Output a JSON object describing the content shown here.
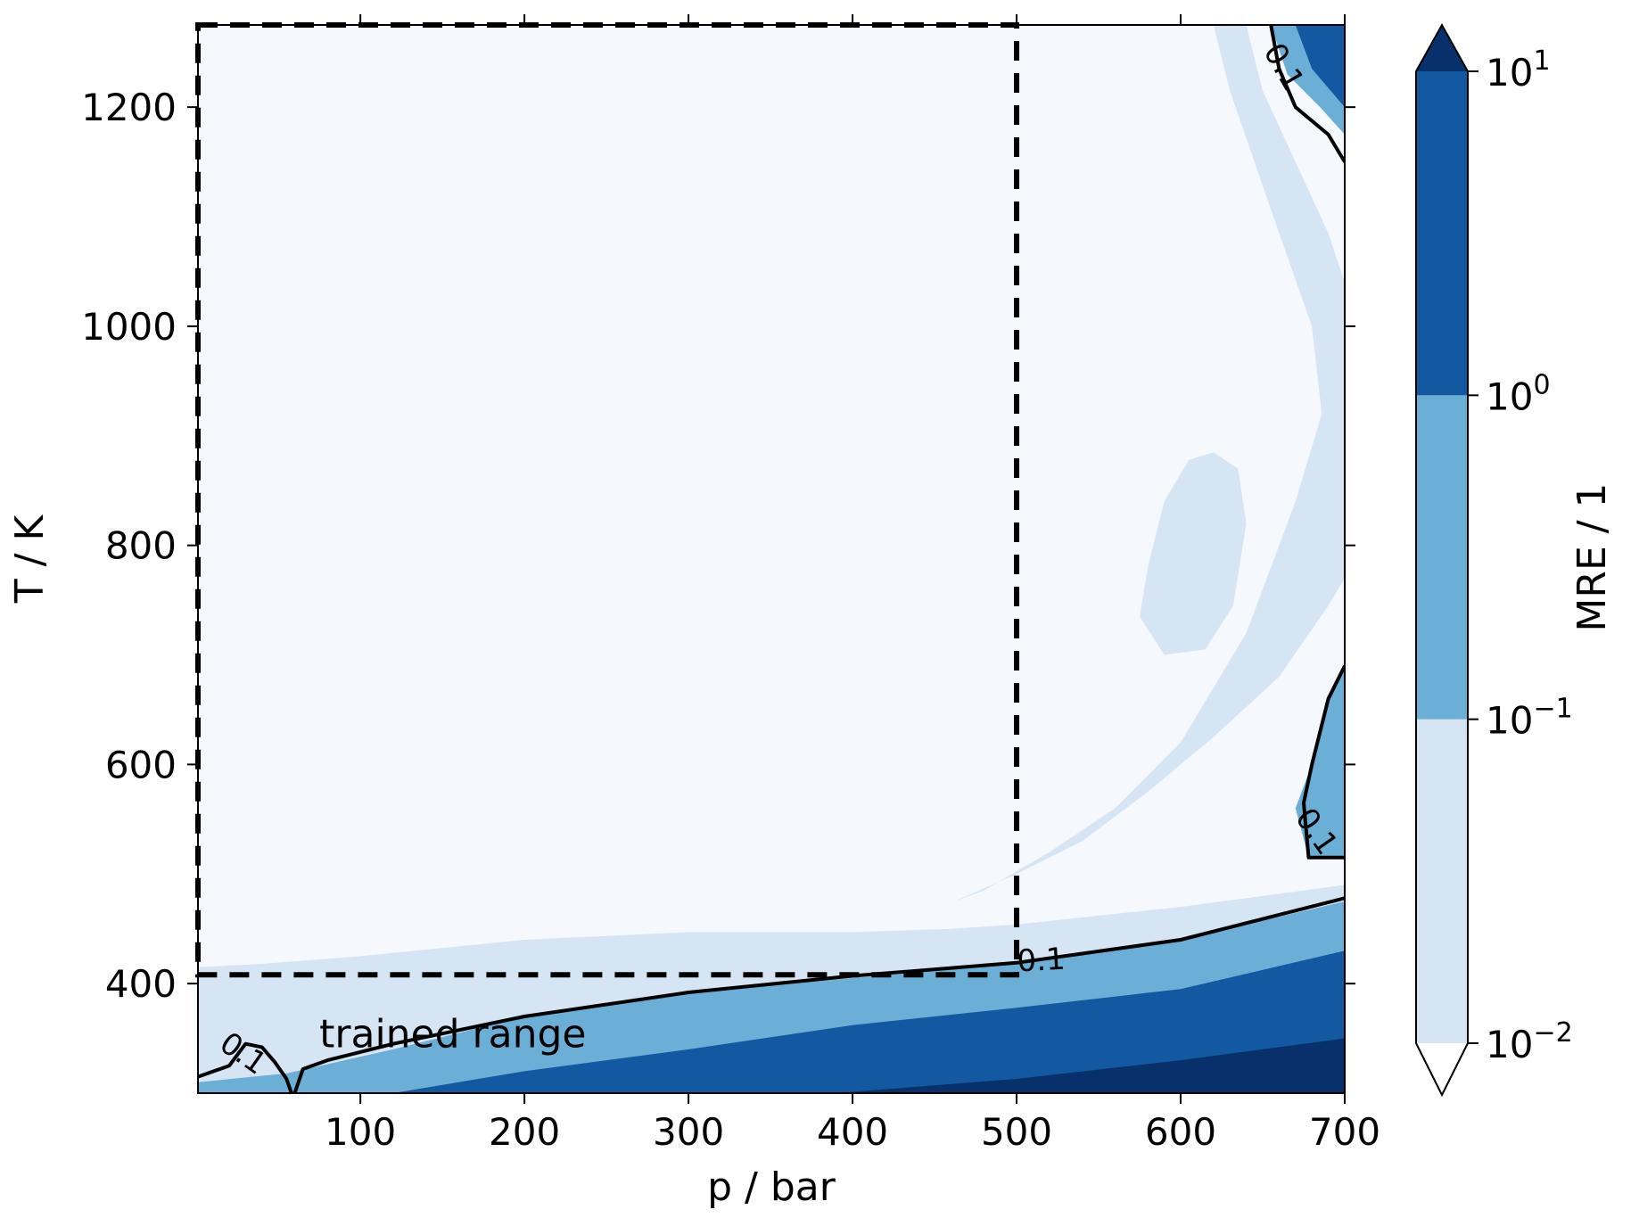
{
  "chart_data": {
    "type": "contour",
    "xlabel": "p / bar",
    "ylabel": "T / K",
    "xlim": [
      1,
      700
    ],
    "ylim": [
      300,
      1275
    ],
    "xticks": [
      100,
      200,
      300,
      400,
      500,
      600,
      700
    ],
    "yticks": [
      400,
      600,
      800,
      1000,
      1200
    ],
    "colorbar": {
      "label": "MRE / 1",
      "scale": "log",
      "levels": [
        0.01,
        0.1,
        1,
        10
      ],
      "tick_labels": [
        {
          "base": "10",
          "exp": "−2"
        },
        {
          "base": "10",
          "exp": "−1"
        },
        {
          "base": "10",
          "exp": "0"
        },
        {
          "base": "10",
          "exp": "1"
        }
      ],
      "extend": "both",
      "colors": {
        "under": "#ffffff",
        "band_1e-2_1e-1": "#d6e5f4",
        "band_1e-1_1e0": "#6baed6",
        "band_1e0_1e1": "#1259a1",
        "over": "#08306b"
      }
    },
    "background_color": "#f5f9fe",
    "regions": [
      {
        "level": "1e-2 to 1e-1",
        "description": "light band above bottom ramp",
        "boundary": [
          [
            1,
            415
          ],
          [
            40,
            418
          ],
          [
            100,
            425
          ],
          [
            200,
            440
          ],
          [
            300,
            447
          ],
          [
            400,
            447
          ],
          [
            460,
            450
          ],
          [
            500,
            454
          ],
          [
            600,
            470
          ],
          [
            700,
            490
          ],
          [
            700,
            300
          ],
          [
            1,
            300
          ]
        ]
      },
      {
        "level": "1e-2 to 1e-1",
        "description": "right-side diagonal band",
        "boundary": [
          [
            462,
            475
          ],
          [
            500,
            500
          ],
          [
            540,
            530
          ],
          [
            580,
            575
          ],
          [
            620,
            625
          ],
          [
            660,
            680
          ],
          [
            690,
            745
          ],
          [
            700,
            770
          ],
          [
            700,
            1040
          ],
          [
            690,
            1085
          ],
          [
            670,
            1150
          ],
          [
            650,
            1215
          ],
          [
            640,
            1275
          ],
          [
            620,
            1275
          ],
          [
            630,
            1215
          ],
          [
            645,
            1150
          ],
          [
            660,
            1085
          ],
          [
            680,
            1000
          ],
          [
            686,
            920
          ],
          [
            670,
            840
          ],
          [
            640,
            720
          ],
          [
            600,
            620
          ],
          [
            560,
            560
          ],
          [
            520,
            520
          ],
          [
            480,
            485
          ]
        ]
      },
      {
        "level": "1e-2 to 1e-1",
        "description": "isolated blob near p=620",
        "boundary": [
          [
            580,
            780
          ],
          [
            590,
            840
          ],
          [
            605,
            878
          ],
          [
            620,
            885
          ],
          [
            635,
            870
          ],
          [
            640,
            820
          ],
          [
            632,
            745
          ],
          [
            615,
            705
          ],
          [
            590,
            700
          ],
          [
            575,
            735
          ]
        ]
      },
      {
        "level": "1e-1 to 1e0",
        "description": "bottom band",
        "boundary": [
          [
            1,
            310
          ],
          [
            55,
            318
          ],
          [
            120,
            340
          ],
          [
            200,
            370
          ],
          [
            300,
            392
          ],
          [
            400,
            405
          ],
          [
            500,
            418
          ],
          [
            600,
            440
          ],
          [
            700,
            475
          ],
          [
            700,
            300
          ],
          [
            1,
            300
          ]
        ]
      },
      {
        "level": "1e-1 to 1e0",
        "description": "right edge mid region",
        "boundary": [
          [
            700,
            690
          ],
          [
            690,
            660
          ],
          [
            680,
            600
          ],
          [
            670,
            560
          ],
          [
            678,
            515
          ],
          [
            700,
            515
          ]
        ]
      },
      {
        "level": "1e-1 to 1e0",
        "description": "top right corner",
        "boundary": [
          [
            655,
            1275
          ],
          [
            665,
            1230
          ],
          [
            685,
            1200
          ],
          [
            700,
            1175
          ],
          [
            700,
            1275
          ]
        ]
      },
      {
        "level": "1e0 to 1e1",
        "description": "bottom dark band",
        "boundary": [
          [
            120,
            300
          ],
          [
            200,
            320
          ],
          [
            300,
            340
          ],
          [
            400,
            362
          ],
          [
            500,
            378
          ],
          [
            600,
            395
          ],
          [
            700,
            430
          ],
          [
            700,
            300
          ]
        ]
      },
      {
        "level": "1e0 to 1e1",
        "description": "top right dark",
        "boundary": [
          [
            670,
            1275
          ],
          [
            680,
            1235
          ],
          [
            700,
            1200
          ],
          [
            700,
            1275
          ]
        ]
      },
      {
        "level": ">1e1",
        "description": "bottom right darkest",
        "boundary": [
          [
            390,
            300
          ],
          [
            500,
            313
          ],
          [
            600,
            330
          ],
          [
            700,
            350
          ],
          [
            700,
            300
          ]
        ]
      }
    ],
    "contour_lines": [
      {
        "label": "0.1",
        "level": 0.1,
        "path": [
          [
            1,
            315
          ],
          [
            20,
            325
          ],
          [
            30,
            345
          ],
          [
            40,
            342
          ],
          [
            48,
            328
          ],
          [
            55,
            313
          ],
          [
            58,
            300
          ]
        ]
      },
      {
        "label": "0.1",
        "level": 0.1,
        "path": [
          [
            60,
            300
          ],
          [
            65,
            322
          ],
          [
            80,
            330
          ],
          [
            120,
            345
          ],
          [
            200,
            370
          ],
          [
            300,
            392
          ],
          [
            400,
            407
          ],
          [
            500,
            419
          ],
          [
            600,
            440
          ],
          [
            700,
            478
          ]
        ]
      },
      {
        "label": "0.1",
        "level": 0.1,
        "path": [
          [
            700,
            690
          ],
          [
            690,
            660
          ],
          [
            680,
            600
          ],
          [
            675,
            565
          ],
          [
            678,
            515
          ],
          [
            700,
            515
          ]
        ]
      },
      {
        "label": "0.1",
        "level": 0.1,
        "path": [
          [
            655,
            1275
          ],
          [
            660,
            1235
          ],
          [
            670,
            1200
          ],
          [
            690,
            1175
          ],
          [
            700,
            1150
          ]
        ]
      }
    ],
    "annotations": [
      {
        "text": "trained range",
        "x": 75,
        "y": 342
      },
      {
        "type": "dashed-rect",
        "x0": 1,
        "x1": 500,
        "y0": 408,
        "y1": 1275
      }
    ]
  }
}
